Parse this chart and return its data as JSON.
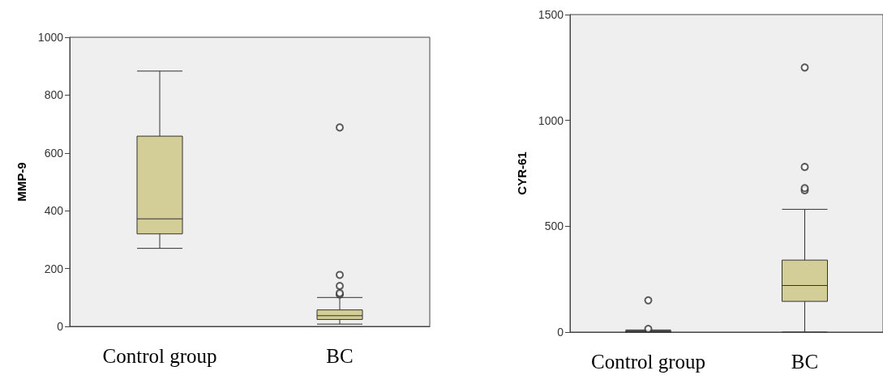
{
  "chart_data": [
    {
      "type": "box",
      "ylabel": "MMP-9",
      "categories": [
        "Control group",
        "BC"
      ],
      "color": "#d3ce97",
      "ylim": [
        0,
        1000
      ],
      "yticks": [
        0,
        200,
        400,
        600,
        800,
        1000
      ],
      "boxes": [
        {
          "low": 270,
          "q1": 320,
          "median": 372,
          "q3": 658,
          "high": 883
        },
        {
          "low": 8,
          "q1": 24,
          "median": 37,
          "q3": 57,
          "high": 100,
          "outliers": [
            110,
            115,
            140,
            178,
            688
          ]
        }
      ]
    },
    {
      "type": "box",
      "ylabel": "CYR-61",
      "categories": [
        "Control group",
        "BC"
      ],
      "color": "#d3ce97",
      "ylim": [
        0,
        1500
      ],
      "yticks": [
        0,
        500,
        1000,
        1500
      ],
      "boxes": [
        {
          "low": 0,
          "q1": 0,
          "median": 2,
          "q3": 5,
          "high": 10,
          "outliers": [
            15,
            150
          ]
        },
        {
          "low": 0,
          "q1": 145,
          "median": 220,
          "q3": 340,
          "high": 580,
          "outliers": [
            670,
            680,
            780,
            1250
          ]
        }
      ]
    }
  ]
}
